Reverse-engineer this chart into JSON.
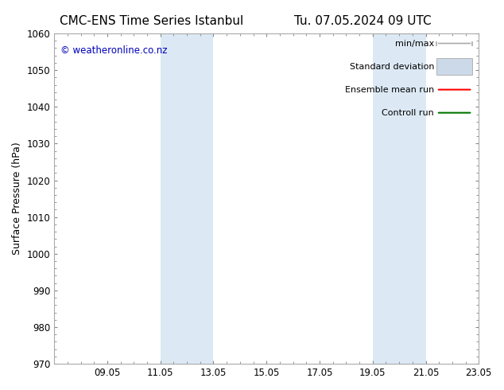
{
  "title_left": "CMC-ENS Time Series Istanbul",
  "title_right": "Tu. 07.05.2024 09 UTC",
  "ylabel": "Surface Pressure (hPa)",
  "ylim": [
    970,
    1060
  ],
  "yticks": [
    970,
    980,
    990,
    1000,
    1010,
    1020,
    1030,
    1040,
    1050,
    1060
  ],
  "xtick_labels": [
    "09.05",
    "11.05",
    "13.05",
    "15.05",
    "17.05",
    "19.05",
    "21.05",
    "23.05"
  ],
  "xtick_positions": [
    2,
    4,
    6,
    8,
    10,
    12,
    14,
    16
  ],
  "xlim": [
    0,
    16
  ],
  "shaded_regions": [
    {
      "x_start": 4,
      "x_end": 6,
      "color": "#dce9f5"
    },
    {
      "x_start": 12,
      "x_end": 14,
      "color": "#dce9f5"
    }
  ],
  "watermark": "© weatheronline.co.nz",
  "watermark_color": "#0000bb",
  "legend_items": [
    {
      "label": "min/max",
      "color": "#aaaaaa",
      "style": "minmax"
    },
    {
      "label": "Standard deviation",
      "color": "#ccddee",
      "style": "box"
    },
    {
      "label": "Ensemble mean run",
      "color": "#ff0000",
      "style": "line"
    },
    {
      "label": "Controll run",
      "color": "#007700",
      "style": "line"
    }
  ],
  "bg_color": "#ffffff",
  "title_fontsize": 11,
  "tick_fontsize": 8.5,
  "label_fontsize": 9,
  "watermark_fontsize": 8.5
}
